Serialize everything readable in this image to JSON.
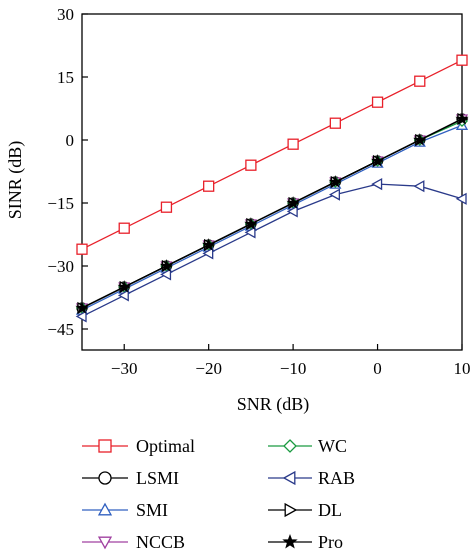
{
  "chart_data": {
    "type": "line",
    "title": "",
    "xlabel": "SNR (dB)",
    "ylabel": "SINR (dB)",
    "xlim": [
      -35,
      10
    ],
    "ylim": [
      -50,
      30
    ],
    "xticks": [
      -30,
      -20,
      -10,
      0,
      10
    ],
    "yticks": [
      -45,
      -30,
      -15,
      0,
      15,
      30
    ],
    "x": [
      -35,
      -30,
      -25,
      -20,
      -15,
      -10,
      -5,
      0,
      5,
      10
    ],
    "grid": false,
    "legend": "bottom",
    "series": [
      {
        "name": "Optimal",
        "color": "#e8202a",
        "marker": "square",
        "values": [
          -26,
          -21,
          -16,
          -11,
          -6,
          -1,
          4,
          9,
          14,
          19
        ]
      },
      {
        "name": "LSMI",
        "color": "#000000",
        "marker": "circle",
        "values": [
          -40,
          -35,
          -30,
          -25,
          -20,
          -15,
          -10,
          -5,
          0,
          5
        ]
      },
      {
        "name": "SMI",
        "color": "#3060c0",
        "marker": "triangle-up",
        "values": [
          -40.5,
          -35.5,
          -30.5,
          -25.5,
          -20.5,
          -15.5,
          -10.5,
          -5.5,
          -0.5,
          3.5
        ]
      },
      {
        "name": "NCCB",
        "color": "#a040a0",
        "marker": "triangle-down",
        "values": [
          -40,
          -35,
          -30,
          -25,
          -20,
          -15,
          -10,
          -5,
          0,
          5
        ]
      },
      {
        "name": "WC",
        "color": "#1a9a40",
        "marker": "diamond",
        "values": [
          -40,
          -35,
          -30,
          -25,
          -20,
          -15,
          -10,
          -5,
          0,
          4.5
        ]
      },
      {
        "name": "RAB",
        "color": "#2a3a8a",
        "marker": "triangle-left",
        "values": [
          -42,
          -37,
          -32,
          -27,
          -22,
          -17,
          -13,
          -10.5,
          -11,
          -14
        ]
      },
      {
        "name": "DL",
        "color": "#000000",
        "marker": "triangle-right",
        "values": [
          -40,
          -35,
          -30,
          -25,
          -20,
          -15,
          -10,
          -5,
          0,
          5
        ]
      },
      {
        "name": "Pro",
        "color": "#000000",
        "marker": "star",
        "values": [
          -40,
          -35,
          -30,
          -25,
          -20,
          -15,
          -10,
          -5,
          0,
          5
        ]
      }
    ]
  }
}
